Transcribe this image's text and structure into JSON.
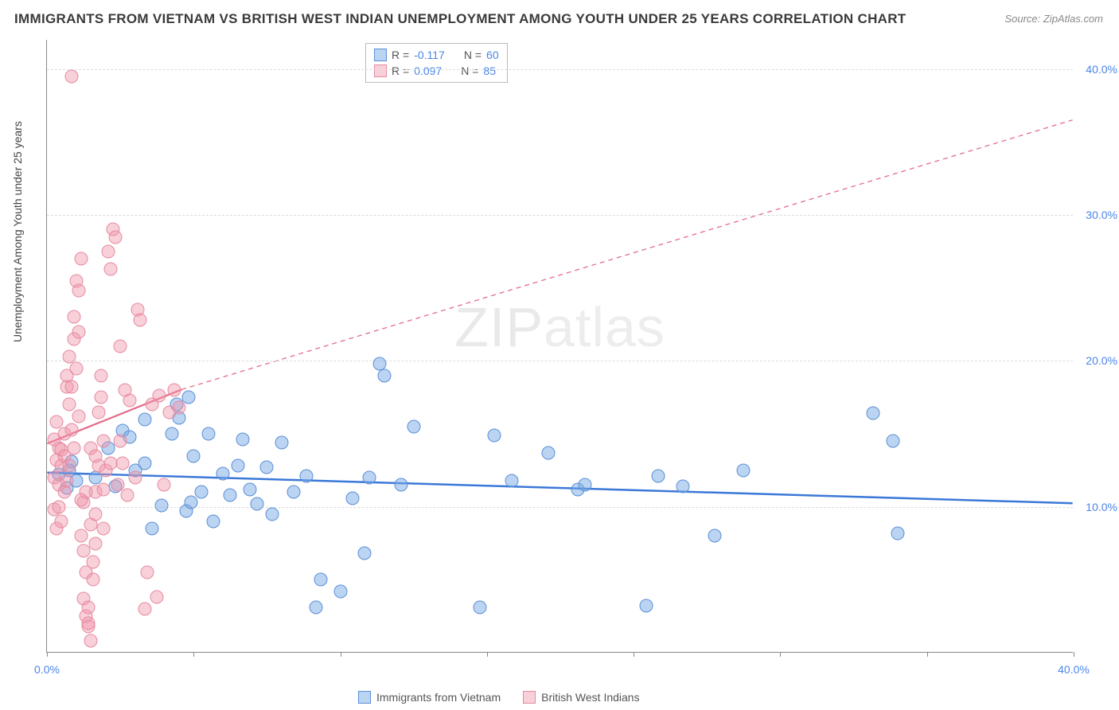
{
  "title": "IMMIGRANTS FROM VIETNAM VS BRITISH WEST INDIAN UNEMPLOYMENT AMONG YOUTH UNDER 25 YEARS CORRELATION CHART",
  "source": "Source: ZipAtlas.com",
  "y_axis_title": "Unemployment Among Youth under 25 years",
  "watermark_left": "ZIP",
  "watermark_right": "atlas",
  "chart": {
    "type": "scatter-correlation",
    "background_color": "#ffffff",
    "grid_color": "#dcdcdc",
    "axis_color": "#888888",
    "tick_label_color": "#4a86e8",
    "tick_fontsize": 14,
    "title_fontsize": 17,
    "title_color": "#3a3a3a",
    "xlim": [
      0,
      42
    ],
    "ylim": [
      0,
      42
    ],
    "y_ticks": [
      10,
      20,
      30,
      40
    ],
    "y_tick_labels": [
      "10.0%",
      "20.0%",
      "30.0%",
      "40.0%"
    ],
    "x_tick_positions": [
      0,
      6,
      12,
      18,
      24,
      30,
      36,
      42
    ],
    "x_tick_labels_visible": {
      "0": "0.0%",
      "42": "40.0%"
    },
    "marker_radius": 8.5,
    "series": [
      {
        "key": "vietnam",
        "label": "Immigrants from Vietnam",
        "color_fill": "rgba(120,170,230,0.5)",
        "color_stroke": "#5b8fd6",
        "R": "-0.117",
        "N": "60",
        "regression": {
          "solid_from": [
            0,
            12.3
          ],
          "solid_to": [
            42,
            10.2
          ],
          "dashed_from": null,
          "dashed_to": null,
          "stroke": "#3b78d8",
          "stroke_width": 2.5
        },
        "points": [
          [
            0.5,
            12.2
          ],
          [
            0.8,
            11.3
          ],
          [
            1.0,
            13.1
          ],
          [
            1.2,
            11.8
          ],
          [
            0.9,
            12.5
          ],
          [
            2.0,
            12.0
          ],
          [
            2.8,
            11.4
          ],
          [
            3.1,
            15.2
          ],
          [
            3.4,
            14.8
          ],
          [
            4.0,
            13.0
          ],
          [
            4.3,
            8.5
          ],
          [
            4.7,
            10.1
          ],
          [
            5.1,
            15.0
          ],
          [
            5.4,
            16.1
          ],
          [
            5.7,
            9.7
          ],
          [
            5.9,
            10.3
          ],
          [
            6.3,
            11.0
          ],
          [
            6.6,
            15.0
          ],
          [
            6.8,
            9.0
          ],
          [
            7.2,
            12.3
          ],
          [
            7.5,
            10.8
          ],
          [
            8.0,
            14.6
          ],
          [
            8.3,
            11.2
          ],
          [
            8.6,
            10.2
          ],
          [
            9.0,
            12.7
          ],
          [
            9.2,
            9.5
          ],
          [
            9.6,
            14.4
          ],
          [
            10.1,
            11.0
          ],
          [
            10.6,
            12.1
          ],
          [
            11.0,
            3.1
          ],
          [
            11.2,
            5.0
          ],
          [
            12.0,
            4.2
          ],
          [
            12.5,
            10.6
          ],
          [
            13.0,
            6.8
          ],
          [
            13.2,
            12.0
          ],
          [
            13.6,
            19.8
          ],
          [
            13.8,
            19.0
          ],
          [
            14.5,
            11.5
          ],
          [
            15.0,
            15.5
          ],
          [
            17.7,
            3.1
          ],
          [
            18.3,
            14.9
          ],
          [
            19.0,
            11.8
          ],
          [
            20.5,
            13.7
          ],
          [
            21.7,
            11.2
          ],
          [
            22.0,
            11.5
          ],
          [
            24.5,
            3.2
          ],
          [
            25.0,
            12.1
          ],
          [
            26.0,
            11.4
          ],
          [
            27.3,
            8.0
          ],
          [
            28.5,
            12.5
          ],
          [
            33.8,
            16.4
          ],
          [
            34.6,
            14.5
          ],
          [
            34.8,
            8.2
          ],
          [
            5.3,
            17.0
          ],
          [
            5.8,
            17.5
          ],
          [
            4.0,
            16.0
          ],
          [
            2.5,
            14.0
          ],
          [
            3.6,
            12.5
          ],
          [
            6.0,
            13.5
          ],
          [
            7.8,
            12.8
          ]
        ]
      },
      {
        "key": "bwi",
        "label": "British West Indians",
        "color_fill": "rgba(240,150,170,0.45)",
        "color_stroke": "#e68aa0",
        "R": "0.097",
        "N": "85",
        "regression": {
          "solid_from": [
            0,
            14.3
          ],
          "solid_to": [
            5.5,
            18.0
          ],
          "dashed_from": [
            5.5,
            18.0
          ],
          "dashed_to": [
            42,
            36.5
          ],
          "stroke": "#e46b8a",
          "stroke_width": 2.2
        },
        "points": [
          [
            0.3,
            12.0
          ],
          [
            0.4,
            13.2
          ],
          [
            0.5,
            11.5
          ],
          [
            0.5,
            14.0
          ],
          [
            0.6,
            12.8
          ],
          [
            0.6,
            13.9
          ],
          [
            0.7,
            15.0
          ],
          [
            0.7,
            11.0
          ],
          [
            0.8,
            19.0
          ],
          [
            0.8,
            18.2
          ],
          [
            0.9,
            20.3
          ],
          [
            0.9,
            17.0
          ],
          [
            1.0,
            18.2
          ],
          [
            1.0,
            15.3
          ],
          [
            1.1,
            21.5
          ],
          [
            1.1,
            23.0
          ],
          [
            1.2,
            19.5
          ],
          [
            1.2,
            25.5
          ],
          [
            1.3,
            24.8
          ],
          [
            1.3,
            22.0
          ],
          [
            1.4,
            27.0
          ],
          [
            1.4,
            8.0
          ],
          [
            1.5,
            7.0
          ],
          [
            1.5,
            10.3
          ],
          [
            1.5,
            3.7
          ],
          [
            1.6,
            5.5
          ],
          [
            1.6,
            2.5
          ],
          [
            1.7,
            1.8
          ],
          [
            1.7,
            3.1
          ],
          [
            1.7,
            2.0
          ],
          [
            1.8,
            0.8
          ],
          [
            1.8,
            8.8
          ],
          [
            1.9,
            6.2
          ],
          [
            1.9,
            5.0
          ],
          [
            2.0,
            11.0
          ],
          [
            2.0,
            9.5
          ],
          [
            2.1,
            16.5
          ],
          [
            2.1,
            12.8
          ],
          [
            2.2,
            19.0
          ],
          [
            2.2,
            17.5
          ],
          [
            2.3,
            11.2
          ],
          [
            2.4,
            12.5
          ],
          [
            2.5,
            27.5
          ],
          [
            2.6,
            26.3
          ],
          [
            2.7,
            29.0
          ],
          [
            2.8,
            28.5
          ],
          [
            0.3,
            9.8
          ],
          [
            0.4,
            8.5
          ],
          [
            0.5,
            10.0
          ],
          [
            0.6,
            9.0
          ],
          [
            3.0,
            21.0
          ],
          [
            3.2,
            18.0
          ],
          [
            3.4,
            17.3
          ],
          [
            3.6,
            12.0
          ],
          [
            3.7,
            23.5
          ],
          [
            3.8,
            22.8
          ],
          [
            4.0,
            3.0
          ],
          [
            4.1,
            5.5
          ],
          [
            4.3,
            17.0
          ],
          [
            4.5,
            3.8
          ],
          [
            4.6,
            17.6
          ],
          [
            4.8,
            11.5
          ],
          [
            5.0,
            16.5
          ],
          [
            5.2,
            18.0
          ],
          [
            5.4,
            16.8
          ],
          [
            1.0,
            39.5
          ],
          [
            2.3,
            14.5
          ],
          [
            2.9,
            11.5
          ],
          [
            3.1,
            13.0
          ],
          [
            3.3,
            10.8
          ],
          [
            0.3,
            14.6
          ],
          [
            0.4,
            15.8
          ],
          [
            0.7,
            13.5
          ],
          [
            1.1,
            14.0
          ],
          [
            1.3,
            16.2
          ],
          [
            1.8,
            14.0
          ],
          [
            2.0,
            7.5
          ],
          [
            2.3,
            8.5
          ],
          [
            0.8,
            11.8
          ],
          [
            0.9,
            12.8
          ],
          [
            1.6,
            11.0
          ],
          [
            1.4,
            10.5
          ],
          [
            2.0,
            13.5
          ],
          [
            2.6,
            13.0
          ],
          [
            3.0,
            14.5
          ]
        ]
      }
    ]
  },
  "legend_stats": {
    "rows": [
      {
        "swatch": "blue",
        "R_lbl": "R = ",
        "R_val": "-0.117",
        "N_lbl": "N = ",
        "N_val": "60"
      },
      {
        "swatch": "pink",
        "R_lbl": "R = ",
        "R_val": "0.097",
        "N_lbl": "N = ",
        "N_val": "85"
      }
    ]
  },
  "legend_bottom": [
    {
      "swatch": "blue",
      "label": "Immigrants from Vietnam"
    },
    {
      "swatch": "pink",
      "label": "British West Indians"
    }
  ]
}
